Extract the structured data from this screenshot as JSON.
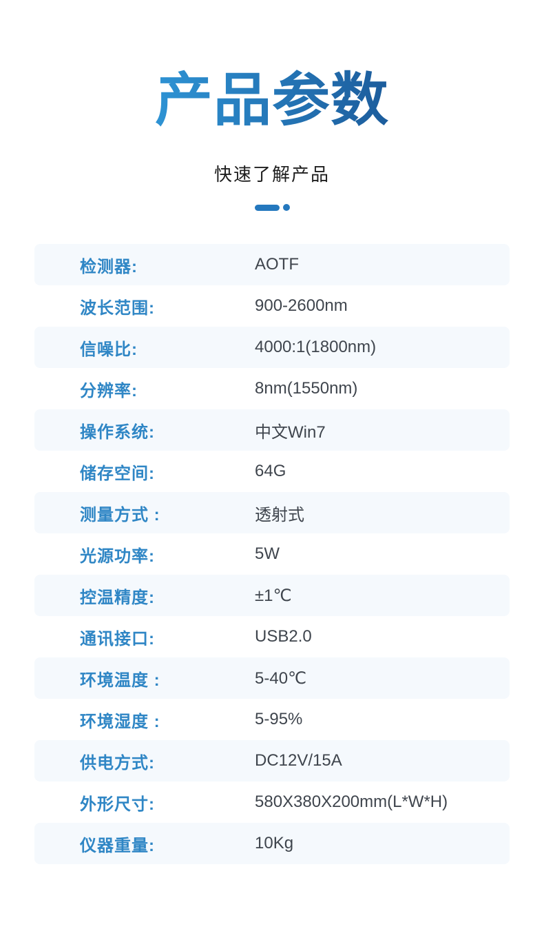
{
  "theme": {
    "page_background": "#FFFFFF",
    "title_gradient_start": "#2E93D4",
    "title_gradient_end": "#1C5C9C",
    "divider_color": "#2478BE",
    "label_color": "#2F86C5",
    "value_color": "#3F454D",
    "stripe_color": "#F5F9FD",
    "subtitle_color": "#1E1E1E"
  },
  "header": {
    "title": "产品参数",
    "subtitle": "快速了解产品"
  },
  "spec_table": {
    "rows": [
      {
        "label": "检测器:",
        "value": "AOTF"
      },
      {
        "label": "波长范围:",
        "value": "900-2600nm"
      },
      {
        "label": "信噪比:",
        "value": "4000:1(1800nm)"
      },
      {
        "label": "分辨率:",
        "value": "8nm(1550nm)"
      },
      {
        "label": "操作系统:",
        "value": "中文Win7"
      },
      {
        "label": "储存空间:",
        "value": "64G"
      },
      {
        "label": "测量方式 :",
        "value": "透射式"
      },
      {
        "label": "光源功率:",
        "value": "5W"
      },
      {
        "label": "控温精度:",
        "value": "±1℃"
      },
      {
        "label": "通讯接口:",
        "value": "USB2.0"
      },
      {
        "label": "环境温度 :",
        "value": "5-40℃"
      },
      {
        "label": "环境湿度 :",
        "value": "5-95%"
      },
      {
        "label": "供电方式:",
        "value": "DC12V/15A"
      },
      {
        "label": "外形尺寸:",
        "value": "580X380X200mm(L*W*H)"
      },
      {
        "label": "仪器重量:",
        "value": "10Kg"
      }
    ]
  }
}
